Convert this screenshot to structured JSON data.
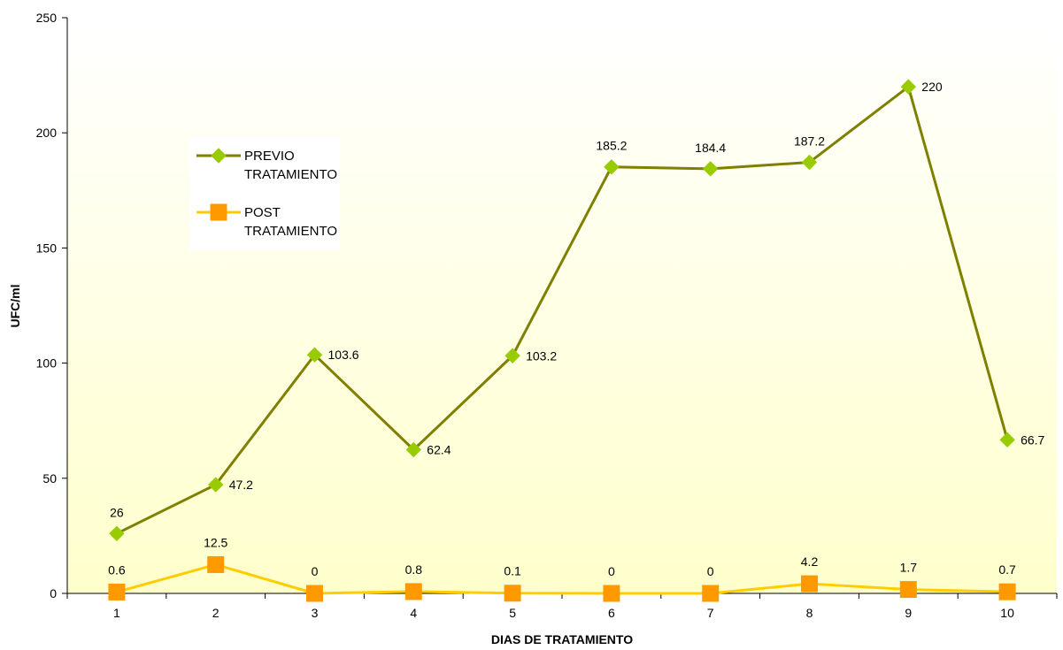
{
  "chart_data": {
    "type": "line",
    "title": "",
    "xlabel": "DIAS DE TRATAMIENTO",
    "ylabel": "UFC/ml",
    "categories": [
      "1",
      "2",
      "3",
      "4",
      "5",
      "6",
      "7",
      "8",
      "9",
      "10"
    ],
    "ylim": [
      0,
      250
    ],
    "yticks": [
      0,
      50,
      100,
      150,
      200,
      250
    ],
    "grid": false,
    "legend_position": "left-upper-inside",
    "series": [
      {
        "name": "PREVIO TRATAMIENTO",
        "legend_lines": [
          "PREVIO",
          "TRATAMIENTO"
        ],
        "marker": "diamond",
        "line_color": "#7f7f00",
        "marker_color": "#99cc00",
        "values": [
          26,
          47.2,
          103.6,
          62.4,
          103.2,
          185.2,
          184.4,
          187.2,
          220,
          66.7
        ],
        "labels": [
          "26",
          "47.2",
          "103.6",
          "62.4",
          "103.2",
          "185.2",
          "184.4",
          "187.2",
          "220",
          "66.7"
        ]
      },
      {
        "name": "POST TRATAMIENTO",
        "legend_lines": [
          "POST",
          "TRATAMIENTO"
        ],
        "marker": "square",
        "line_color": "#ffcc00",
        "marker_color": "#ff9900",
        "values": [
          0.6,
          12.5,
          0,
          0.8,
          0.1,
          0,
          0,
          4.2,
          1.7,
          0.7
        ],
        "labels": [
          "0.6",
          "12.5",
          "0",
          "0.8",
          "0.1",
          "0",
          "0",
          "4.2",
          "1.7",
          "0.7"
        ]
      }
    ],
    "background_gradient": [
      "#ffffff",
      "#ffffcc"
    ]
  }
}
